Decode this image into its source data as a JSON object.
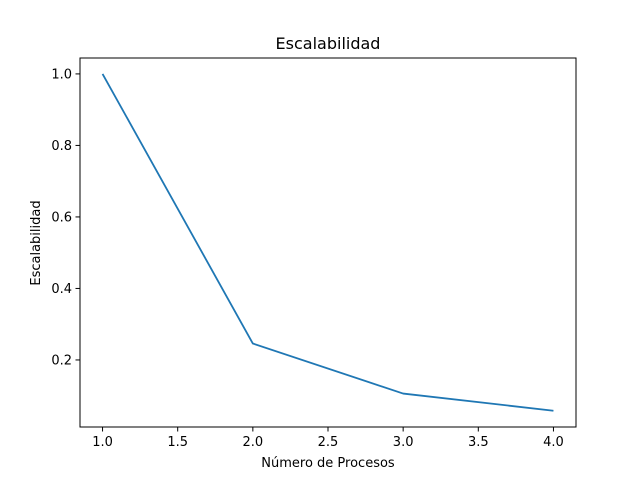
{
  "chart_data": {
    "type": "line",
    "title": "Escalabilidad",
    "xlabel": "Número de Procesos",
    "ylabel": "Escalabilidad",
    "xlim": [
      0.85,
      4.15
    ],
    "ylim": [
      0.0125,
      1.0445
    ],
    "xticks": [
      1.0,
      1.5,
      2.0,
      2.5,
      3.0,
      3.5,
      4.0
    ],
    "xtick_labels": [
      "1.0",
      "1.5",
      "2.0",
      "2.5",
      "3.0",
      "3.5",
      "4.0"
    ],
    "yticks": [
      0.2,
      0.4,
      0.6,
      0.8,
      1.0
    ],
    "ytick_labels": [
      "0.2",
      "0.4",
      "0.6",
      "0.8",
      "1.0"
    ],
    "grid": false,
    "series": [
      {
        "color": "#1f77b4",
        "x": [
          1,
          2,
          3,
          4
        ],
        "y": [
          1.0,
          0.246,
          0.106,
          0.058
        ]
      }
    ]
  }
}
